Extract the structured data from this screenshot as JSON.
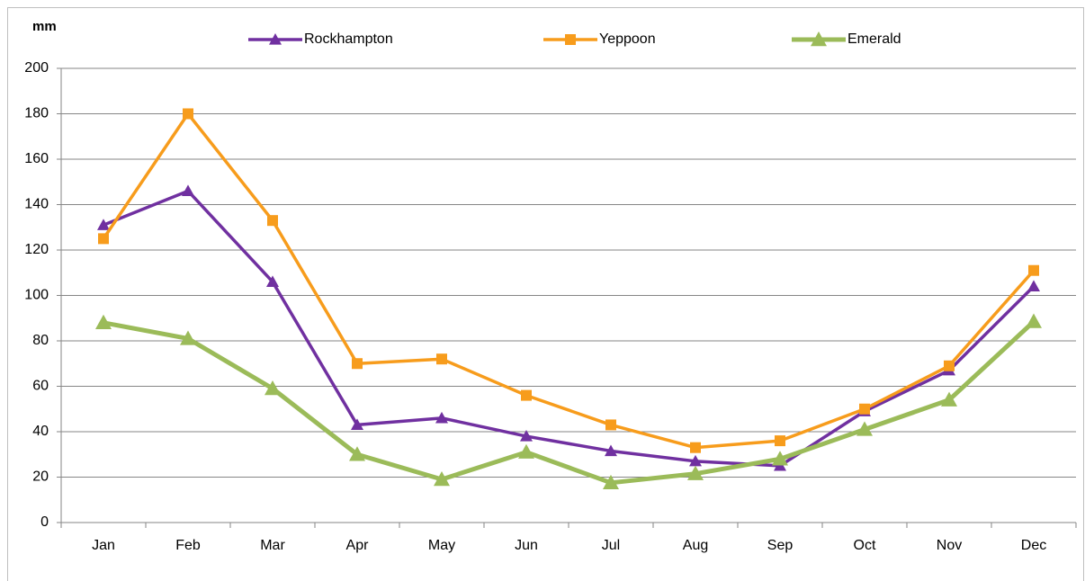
{
  "chart_data": {
    "type": "line",
    "y_label": "mm",
    "categories": [
      "Jan",
      "Feb",
      "Mar",
      "Apr",
      "May",
      "Jun",
      "Jul",
      "Aug",
      "Sep",
      "Oct",
      "Nov",
      "Dec"
    ],
    "series": [
      {
        "name": "Rockhampton",
        "color": "#7030a0",
        "marker": "triangle",
        "values": [
          131,
          146,
          106,
          43,
          46,
          38,
          31.5,
          27,
          25,
          49,
          67,
          104
        ]
      },
      {
        "name": "Yeppoon",
        "color": "#f79c1c",
        "marker": "square",
        "values": [
          125,
          180,
          133,
          70,
          72,
          56,
          43,
          33,
          36,
          50,
          69,
          111
        ]
      },
      {
        "name": "Emerald",
        "color": "#9bbb59",
        "marker": "triangle-large",
        "values": [
          88,
          81,
          59,
          30,
          19,
          31,
          17.5,
          21.5,
          28,
          41,
          54,
          88.5
        ]
      }
    ],
    "ylim": [
      0,
      200
    ],
    "yticks": [
      0,
      20,
      40,
      60,
      80,
      100,
      120,
      140,
      160,
      180,
      200
    ],
    "grid": true,
    "legend": "top"
  }
}
